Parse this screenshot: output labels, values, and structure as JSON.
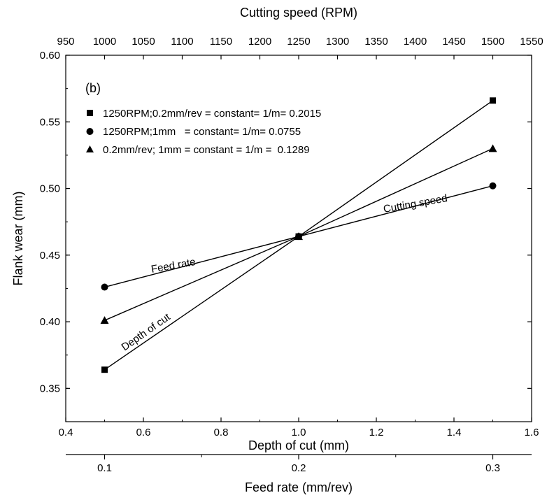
{
  "chart_data": {
    "type": "line",
    "panel_label": "(b)",
    "y_axis": {
      "label": "Flank wear (mm)",
      "range": [
        0.325,
        0.6
      ],
      "ticks": [
        "0.35",
        "0.40",
        "0.45",
        "0.50",
        "0.55",
        "0.60"
      ],
      "tick_values": [
        0.35,
        0.4,
        0.45,
        0.5,
        0.55,
        0.6
      ]
    },
    "x_bottom": {
      "label": "Depth of cut (mm)",
      "range": [
        0.4,
        1.6
      ],
      "ticks": [
        "0.4",
        "0.6",
        "0.8",
        "1.0",
        "1.2",
        "1.4",
        "1.6"
      ],
      "tick_values": [
        0.4,
        0.6,
        0.8,
        1.0,
        1.2,
        1.4,
        1.6
      ]
    },
    "x_top": {
      "label": "Cutting speed (RPM)",
      "range": [
        950,
        1550
      ],
      "ticks": [
        "950",
        "1000",
        "1050",
        "1100",
        "1150",
        "1200",
        "1250",
        "1300",
        "1350",
        "1400",
        "1450",
        "1500",
        "1550"
      ],
      "tick_values": [
        950,
        1000,
        1050,
        1100,
        1150,
        1200,
        1250,
        1300,
        1350,
        1400,
        1450,
        1500,
        1550
      ]
    },
    "x_feed": {
      "label": "Feed rate (mm/rev)",
      "ticks": [
        "0.1",
        "0.2",
        "0.3"
      ],
      "tick_values": [
        0.1,
        0.2,
        0.3
      ]
    },
    "series": [
      {
        "legend": "1250RPM;0.2mm/rev = constant= 1/m= 0.2015",
        "marker": "square",
        "line_label": "Depth of cut",
        "x": [
          0.5,
          1.0,
          1.5
        ],
        "y": [
          0.364,
          0.464,
          0.566
        ]
      },
      {
        "legend": "1250RPM;1mm   = constant= 1/m= 0.0755",
        "marker": "circle",
        "line_label": "Feed rate",
        "x": [
          0.5,
          1.0,
          1.5
        ],
        "y": [
          0.426,
          0.464,
          0.502
        ]
      },
      {
        "legend": "0.2mm/rev; 1mm = constant = 1/m =  0.1289",
        "marker": "triangle",
        "line_label": "Cutting speed",
        "x": [
          0.5,
          1.0,
          1.5
        ],
        "y": [
          0.401,
          0.464,
          0.53
        ]
      }
    ],
    "grid": false,
    "legend_position": "top-left"
  }
}
